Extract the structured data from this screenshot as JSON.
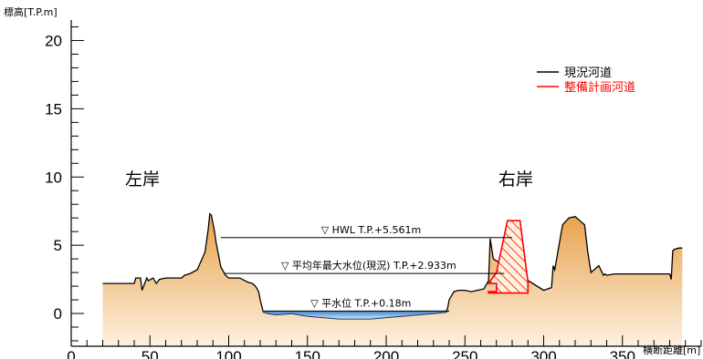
{
  "chart_data": {
    "type": "area",
    "ylabel": "標高[T.P.m]",
    "xlabel": "横断距離[m]",
    "xlim": [
      0,
      400
    ],
    "ylim": [
      -2.4,
      21.5
    ],
    "x_ticks": [
      0,
      50,
      100,
      150,
      200,
      250,
      300,
      350
    ],
    "y_ticks": [
      0,
      5,
      10,
      15,
      20
    ],
    "y_minor_step": 1,
    "annotations": {
      "left_bank": "左岸",
      "right_bank": "右岸"
    },
    "legend": {
      "position": "top-right",
      "entries": [
        {
          "label": "現況河道",
          "color": "#000000"
        },
        {
          "label": "整備計画河道",
          "color": "#ff0000"
        }
      ]
    },
    "water_levels": [
      {
        "label": "▽ HWL T.P.+5.561m",
        "value": 5.561,
        "x_from": 95,
        "x_to": 280
      },
      {
        "label": "▽ 平均年最大水位(現況) T.P.+2.933m",
        "value": 2.933,
        "x_from": 97,
        "x_to": 275
      },
      {
        "label": "▽ 平水位 T.P.+0.18m",
        "value": 0.18,
        "x_from": 122,
        "x_to": 240
      }
    ],
    "series": [
      {
        "color": "#000000",
        "fill_top": "#e8a24a",
        "fill_bottom": "#fdf0e0",
        "x": [
          20,
          40,
          41,
          44,
          45,
          48,
          49,
          52,
          54,
          56,
          60,
          65,
          70,
          72,
          75,
          80,
          85,
          87,
          88,
          89,
          90,
          91,
          92,
          95,
          98,
          100,
          103,
          107,
          112,
          115,
          117,
          119,
          120,
          122,
          125,
          130,
          140,
          150,
          160,
          170,
          180,
          190,
          200,
          210,
          220,
          230,
          238,
          239,
          240,
          243,
          246,
          250,
          254,
          258,
          262,
          265,
          266,
          268,
          300,
          305,
          306,
          307,
          309,
          312,
          316,
          320,
          326,
          328,
          330,
          332,
          335,
          338,
          339,
          340,
          345,
          350,
          360,
          370,
          380,
          381,
          382,
          383,
          386,
          388
        ],
        "y": [
          2.2,
          2.2,
          2.6,
          2.6,
          1.7,
          2.6,
          2.4,
          2.6,
          2.2,
          2.5,
          2.6,
          2.6,
          2.6,
          2.8,
          2.9,
          3.2,
          4.5,
          6.2,
          7.3,
          7.2,
          6.6,
          6.0,
          5.2,
          3.4,
          2.8,
          2.6,
          2.6,
          2.6,
          2.3,
          2.2,
          2.0,
          1.6,
          1.0,
          0.1,
          0.0,
          -0.1,
          0.0,
          -0.2,
          -0.3,
          -0.4,
          -0.4,
          -0.4,
          -0.3,
          -0.2,
          -0.1,
          0.0,
          0.1,
          0.4,
          1.0,
          1.6,
          1.7,
          1.7,
          1.6,
          1.7,
          1.8,
          2.4,
          5.5,
          4.0,
          1.7,
          1.9,
          3.5,
          3.2,
          4.5,
          6.5,
          7.0,
          7.1,
          6.5,
          4.5,
          3.0,
          3.2,
          3.5,
          2.8,
          2.9,
          2.8,
          2.9,
          2.9,
          2.9,
          2.9,
          2.9,
          2.5,
          4.6,
          4.7,
          4.8,
          4.8
        ]
      },
      {
        "color": "#ff0000",
        "x": [
          265,
          275,
          283,
          290,
          290,
          285,
          277,
          270,
          265,
          270,
          270,
          265,
          265
        ],
        "y": [
          1.5,
          1.5,
          1.5,
          1.5,
          2.3,
          6.8,
          6.8,
          3.0,
          2.2,
          2.2,
          1.6,
          1.6,
          1.5
        ]
      }
    ]
  }
}
